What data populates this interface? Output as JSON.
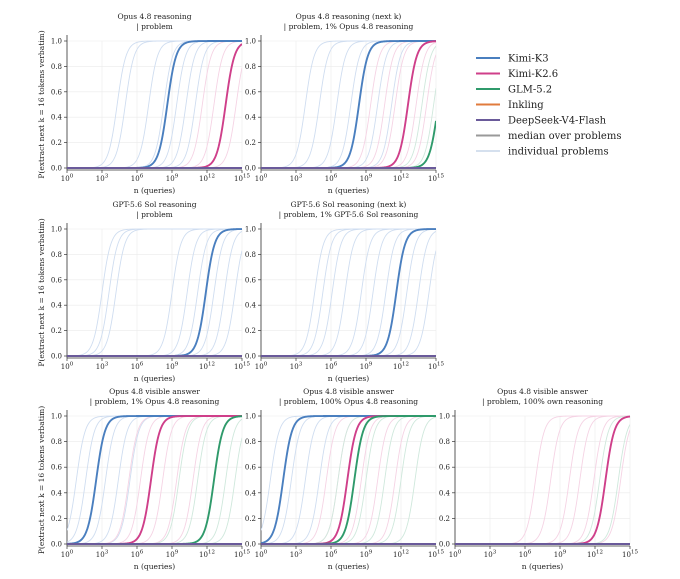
{
  "figure": {
    "ylabel": "P(extract next k = 16 tokens verbatim)",
    "xlabel": "n (queries)"
  },
  "legend": {
    "entries": [
      {
        "label": "Kimi-K3",
        "color": "#4a7fbf"
      },
      {
        "label": "Kimi-K2.6",
        "color": "#cf3f8a"
      },
      {
        "label": "GLM-5.2",
        "color": "#2f9a6b"
      },
      {
        "label": "Inkling",
        "color": "#e07b3c"
      },
      {
        "label": "DeepSeek-V4-Flash",
        "color": "#6a5a9a"
      },
      {
        "label": "median over problems",
        "color": "#999999"
      },
      {
        "label": "individual problems",
        "color": "#d5e0ee"
      }
    ]
  },
  "chart_data": [
    {
      "type": "line",
      "row": 0,
      "col": 0,
      "title": [
        "Opus 4.8 reasoning",
        "| problem"
      ],
      "xlabel": "n (queries)",
      "xscale": "log10",
      "xlim": [
        1,
        1000000000000000.0
      ],
      "ylim": [
        0,
        1
      ],
      "xticks": [
        "10^0",
        "10^3",
        "10^6",
        "10^9",
        "10^12",
        "10^15"
      ],
      "yticks": [
        "0.0",
        "0.2",
        "0.4",
        "0.6",
        "0.8",
        "1.0"
      ],
      "series": [
        {
          "name": "Kimi-K3",
          "log10_n_at_half": 8.6,
          "values_at_log10_n": [
            [
              6.5,
              0.0
            ],
            [
              8.6,
              0.5
            ],
            [
              10.3,
              1.0
            ]
          ]
        },
        {
          "name": "Kimi-K2.6",
          "log10_n_at_half": 13.6,
          "values_at_log10_n": [
            [
              11.6,
              0.0
            ],
            [
              13.6,
              0.5
            ],
            [
              15,
              1.0
            ]
          ]
        },
        {
          "name": "DeepSeek-V4-Flash",
          "values_at_log10_n": [
            [
              0,
              0.0
            ],
            [
              15,
              0.0
            ]
          ]
        }
      ],
      "individual_problems": [
        {
          "color": "#cfddf0",
          "log10_n_at_half": [
            4.3,
            5.0,
            7.0,
            8.3,
            9.4,
            10.2,
            11.0
          ]
        },
        {
          "color": "#f5d3e4",
          "log10_n_at_half": [
            11.6,
            12.6,
            13.6,
            14.5
          ]
        }
      ]
    },
    {
      "type": "line",
      "row": 0,
      "col": 1,
      "title": [
        "Opus 4.8 reasoning (next k)",
        "| problem, 1% Opus 4.8 reasoning"
      ],
      "xlabel": "n (queries)",
      "xscale": "log10",
      "xlim": [
        1,
        1000000000000000.0
      ],
      "ylim": [
        0,
        1
      ],
      "xticks": [
        "10^0",
        "10^3",
        "10^6",
        "10^9",
        "10^12",
        "10^15"
      ],
      "yticks": [
        "0.0",
        "0.2",
        "0.4",
        "0.6",
        "0.8",
        "1.0"
      ],
      "series": [
        {
          "name": "Kimi-K3",
          "log10_n_at_half": 8.4,
          "values_at_log10_n": [
            [
              6.3,
              0.0
            ],
            [
              8.4,
              0.5
            ],
            [
              10.2,
              1.0
            ]
          ]
        },
        {
          "name": "Kimi-K2.6",
          "log10_n_at_half": 12.6,
          "values_at_log10_n": [
            [
              10.6,
              0.0
            ],
            [
              12.6,
              0.5
            ],
            [
              14.2,
              1.0
            ]
          ]
        },
        {
          "name": "GLM-5.2",
          "log10_n_at_half": 15.2,
          "values_at_log10_n": [
            [
              13.2,
              0.0
            ],
            [
              15,
              0.64
            ]
          ]
        },
        {
          "name": "DeepSeek-V4-Flash",
          "values_at_log10_n": [
            [
              0,
              0.0
            ],
            [
              15,
              0.0
            ]
          ]
        }
      ],
      "individual_problems": [
        {
          "color": "#cfddf0",
          "log10_n_at_half": [
            3.8,
            5.0,
            6.5,
            7.7,
            10.0,
            11.2
          ]
        },
        {
          "color": "#f5d3e4",
          "log10_n_at_half": [
            9.4,
            10.6,
            11.5,
            13.3,
            14.2
          ]
        },
        {
          "color": "#cfe8dc",
          "log10_n_at_half": [
            13.8,
            14.8
          ]
        }
      ]
    },
    {
      "type": "line",
      "row": 1,
      "col": 0,
      "title": [
        "GPT-5.6 Sol reasoning",
        "| problem"
      ],
      "xlabel": "n (queries)",
      "xscale": "log10",
      "xlim": [
        1,
        1000000000000000.0
      ],
      "ylim": [
        0,
        1
      ],
      "xticks": [
        "10^0",
        "10^3",
        "10^6",
        "10^9",
        "10^12",
        "10^15"
      ],
      "yticks": [
        "0.0",
        "0.2",
        "0.4",
        "0.6",
        "0.8",
        "1.0"
      ],
      "series": [
        {
          "name": "Kimi-K3",
          "log10_n_at_half": 11.9,
          "values_at_log10_n": [
            [
              9.8,
              0.0
            ],
            [
              11.9,
              0.5
            ],
            [
              13.6,
              1.0
            ]
          ]
        },
        {
          "name": "DeepSeek-V4-Flash",
          "values_at_log10_n": [
            [
              0,
              0.0
            ],
            [
              15,
              0.0
            ]
          ]
        }
      ],
      "individual_problems": [
        {
          "color": "#cfddf0",
          "log10_n_at_half": [
            3.0,
            3.6,
            4.2,
            9.0,
            10.3,
            11.2,
            12.6,
            13.5,
            14.4
          ]
        }
      ]
    },
    {
      "type": "line",
      "row": 1,
      "col": 1,
      "title": [
        "GPT-5.6 Sol reasoning (next k)",
        "| problem, 1% GPT-5.6 Sol reasoning"
      ],
      "xlabel": "n (queries)",
      "xscale": "log10",
      "xlim": [
        1,
        1000000000000000.0
      ],
      "ylim": [
        0,
        1
      ],
      "xticks": [
        "10^0",
        "10^3",
        "10^6",
        "10^9",
        "10^12",
        "10^15"
      ],
      "yticks": [
        "0.0",
        "0.2",
        "0.4",
        "0.6",
        "0.8",
        "1.0"
      ],
      "series": [
        {
          "name": "Kimi-K3",
          "log10_n_at_half": 11.6,
          "values_at_log10_n": [
            [
              9.6,
              0.0
            ],
            [
              11.6,
              0.5
            ],
            [
              13.3,
              1.0
            ]
          ]
        },
        {
          "name": "DeepSeek-V4-Flash",
          "values_at_log10_n": [
            [
              0,
              0.0
            ],
            [
              15,
              0.0
            ]
          ]
        }
      ],
      "individual_problems": [
        {
          "color": "#cfddf0",
          "log10_n_at_half": [
            4.6,
            5.3,
            6.1,
            7.2,
            8.6,
            9.6,
            10.7,
            12.5,
            13.5,
            14.4
          ]
        }
      ]
    },
    {
      "type": "line",
      "row": 2,
      "col": 0,
      "title": [
        "Opus 4.8 visible answer",
        "| problem, 1% Opus 4.8 reasoning"
      ],
      "xlabel": "n (queries)",
      "xscale": "log10",
      "xlim": [
        1,
        1000000000000000.0
      ],
      "ylim": [
        0,
        1
      ],
      "xticks": [
        "10^0",
        "10^3",
        "10^6",
        "10^9",
        "10^12",
        "10^15"
      ],
      "yticks": [
        "0.0",
        "0.2",
        "0.4",
        "0.6",
        "0.8",
        "1.0"
      ],
      "series": [
        {
          "name": "Kimi-K3",
          "log10_n_at_half": 2.5,
          "values_at_log10_n": [
            [
              0.4,
              0.0
            ],
            [
              2.5,
              0.5
            ],
            [
              4.3,
              1.0
            ]
          ]
        },
        {
          "name": "Kimi-K2.6",
          "log10_n_at_half": 7.2,
          "values_at_log10_n": [
            [
              5.1,
              0.0
            ],
            [
              7.2,
              0.5
            ],
            [
              8.8,
              1.0
            ]
          ]
        },
        {
          "name": "GLM-5.2",
          "log10_n_at_half": 12.6,
          "values_at_log10_n": [
            [
              10.5,
              0.0
            ],
            [
              12.6,
              0.5
            ],
            [
              14.0,
              1.0
            ]
          ]
        },
        {
          "name": "DeepSeek-V4-Flash",
          "values_at_log10_n": [
            [
              0,
              0.0
            ],
            [
              15,
              0.0
            ]
          ]
        }
      ],
      "individual_problems": [
        {
          "color": "#cfddf0",
          "log10_n_at_half": [
            0.8,
            1.6,
            3.3,
            4.4,
            5.4
          ]
        },
        {
          "color": "#f5d3e4",
          "log10_n_at_half": [
            5.3,
            6.3,
            8.2,
            9.4,
            10.8
          ]
        },
        {
          "color": "#cfe8dc",
          "log10_n_at_half": [
            9.6,
            11.2,
            13.6,
            14.4
          ]
        }
      ]
    },
    {
      "type": "line",
      "row": 2,
      "col": 1,
      "title": [
        "Opus 4.8 visible answer",
        "| problem, 100% Opus 4.8 reasoning"
      ],
      "xlabel": "n (queries)",
      "xscale": "log10",
      "xlim": [
        1,
        1000000000000000.0
      ],
      "ylim": [
        0,
        1
      ],
      "xticks": [
        "10^0",
        "10^3",
        "10^6",
        "10^9",
        "10^12",
        "10^15"
      ],
      "yticks": [
        "0.0",
        "0.2",
        "0.4",
        "0.6",
        "0.8",
        "1.0"
      ],
      "series": [
        {
          "name": "Kimi-K3",
          "log10_n_at_half": 1.9,
          "values_at_log10_n": [
            [
              0,
              0.03
            ],
            [
              1.9,
              0.5
            ],
            [
              3.6,
              1.0
            ]
          ]
        },
        {
          "name": "Kimi-K2.6",
          "log10_n_at_half": 7.4,
          "values_at_log10_n": [
            [
              5.4,
              0.0
            ],
            [
              7.4,
              0.5
            ],
            [
              9.0,
              1.0
            ]
          ]
        },
        {
          "name": "GLM-5.2",
          "log10_n_at_half": 8.0,
          "values_at_log10_n": [
            [
              6.0,
              0.0
            ],
            [
              8.0,
              0.5
            ],
            [
              9.7,
              1.0
            ]
          ]
        },
        {
          "name": "DeepSeek-V4-Flash",
          "values_at_log10_n": [
            [
              0,
              0.0
            ],
            [
              15,
              0.0
            ]
          ]
        }
      ],
      "individual_problems": [
        {
          "color": "#cfddf0",
          "log10_n_at_half": [
            0.8,
            2.6,
            3.8,
            5.0
          ]
        },
        {
          "color": "#f5d3e4",
          "log10_n_at_half": [
            5.6,
            6.6,
            8.6,
            10.0,
            11.5
          ]
        },
        {
          "color": "#cfe8dc",
          "log10_n_at_half": [
            6.6,
            9.0,
            10.6,
            12.0,
            13.2
          ]
        }
      ]
    },
    {
      "type": "line",
      "row": 2,
      "col": 2,
      "title": [
        "Opus 4.8 visible answer",
        "| problem, 100% own reasoning"
      ],
      "xlabel": "n (queries)",
      "xscale": "log10",
      "xlim": [
        1,
        1000000000000000.0
      ],
      "ylim": [
        0,
        1
      ],
      "xticks": [
        "10^0",
        "10^3",
        "10^6",
        "10^9",
        "10^12",
        "10^15"
      ],
      "yticks": [
        "0.0",
        "0.2",
        "0.4",
        "0.6",
        "0.8",
        "1.0"
      ],
      "series": [
        {
          "name": "Kimi-K2.6",
          "log10_n_at_half": 12.9,
          "values_at_log10_n": [
            [
              10.9,
              0.0
            ],
            [
              12.9,
              0.5
            ],
            [
              14.4,
              1.0
            ]
          ]
        },
        {
          "name": "DeepSeek-V4-Flash",
          "values_at_log10_n": [
            [
              0,
              0.0
            ],
            [
              15,
              0.0
            ]
          ]
        }
      ],
      "individual_problems": [
        {
          "color": "#f5d3e4",
          "log10_n_at_half": [
            6.9,
            8.2,
            9.8,
            10.7,
            11.9,
            14.2
          ]
        },
        {
          "color": "#cfe8dc",
          "log10_n_at_half": [
            12.4,
            14.0
          ]
        }
      ]
    }
  ]
}
